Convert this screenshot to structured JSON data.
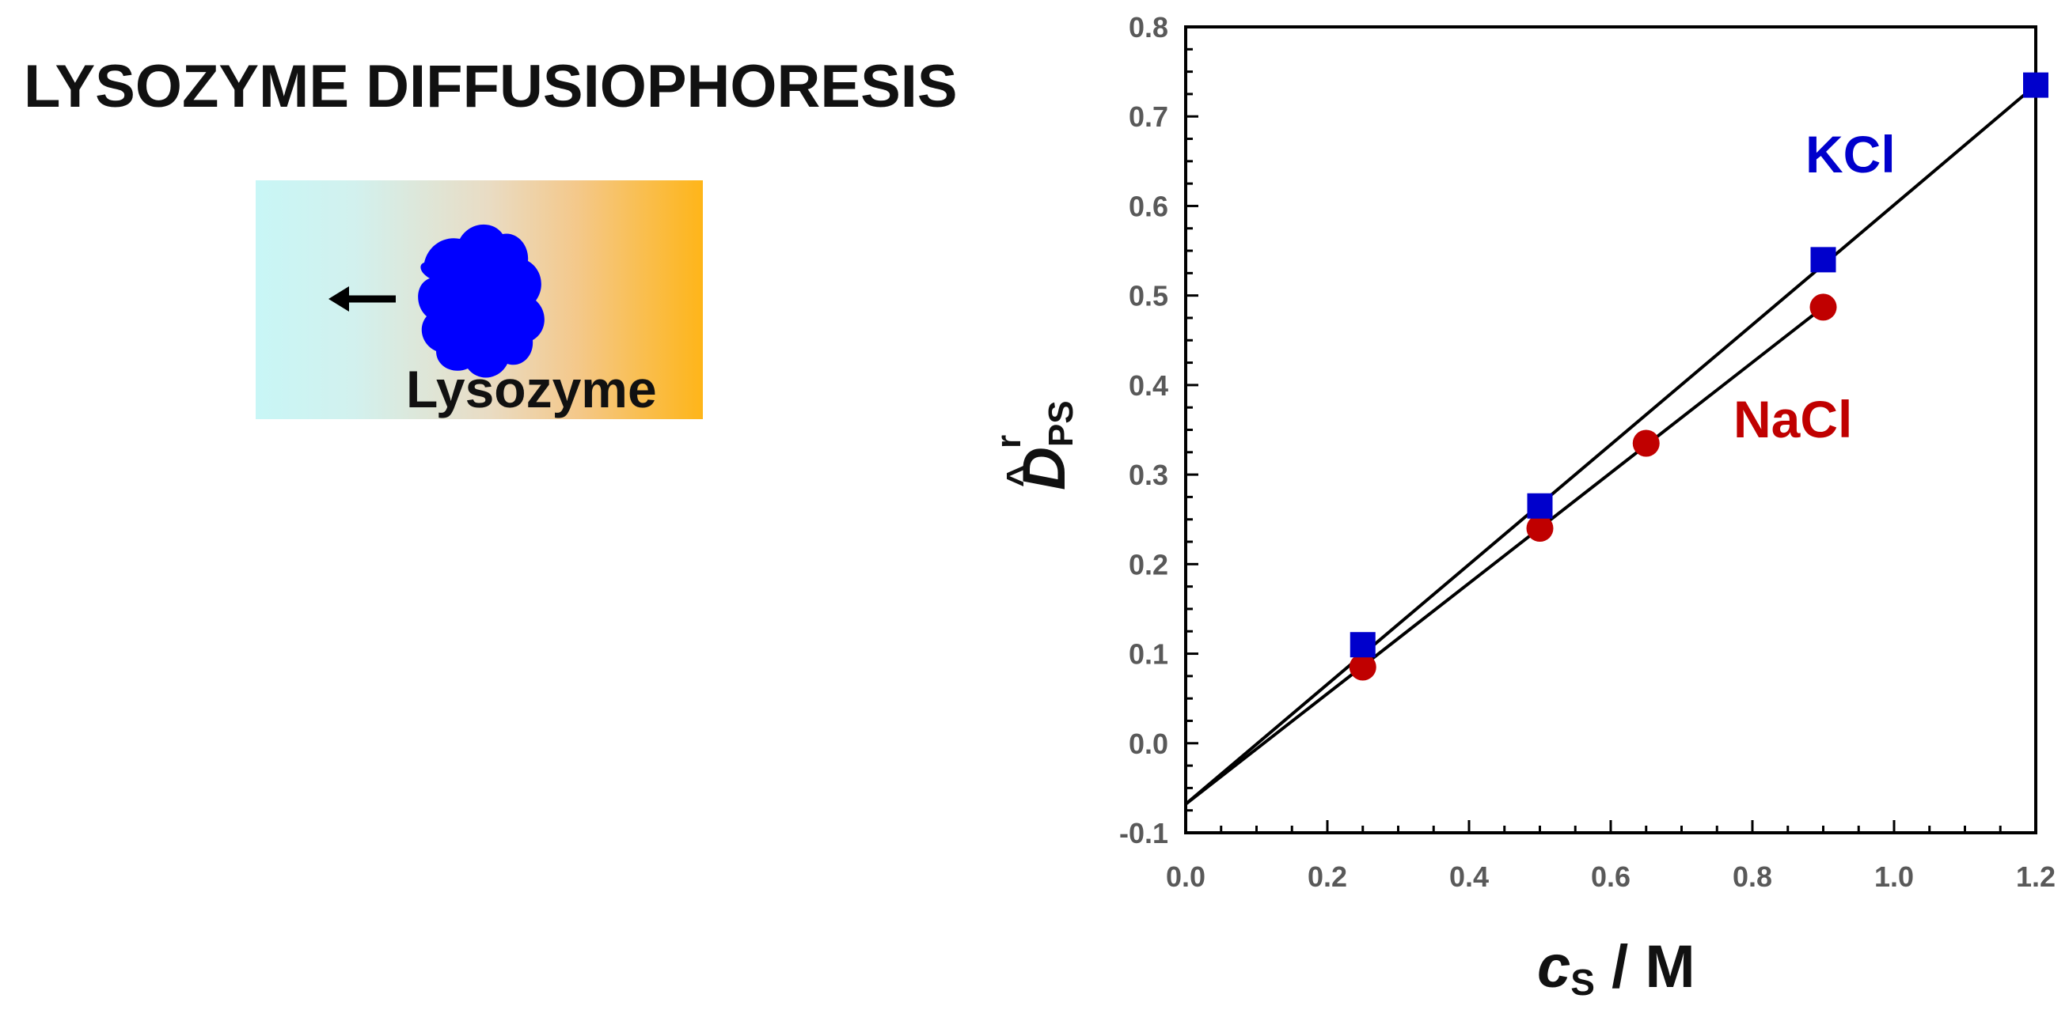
{
  "title": "LYSOZYME DIFFUSIOPHORESIS",
  "illustration": {
    "label": "Lysozyme",
    "icon": "lysozyme-blob-icon",
    "arrow_icon": "arrow-left-icon",
    "blob_color": "#0000ff",
    "gradient_colors": [
      "#c8f6f6",
      "#feb519"
    ]
  },
  "chart_data": {
    "type": "scatter",
    "xlabel_main": "c",
    "xlabel_sub": "S",
    "xlabel_unit": " / M",
    "ylabel_main": "D",
    "ylabel_sub": "PS",
    "ylabel_sup": "r",
    "xlim": [
      0.0,
      1.2
    ],
    "ylim": [
      -0.1,
      0.8
    ],
    "xticks": [
      "0.0",
      "0.2",
      "0.4",
      "0.6",
      "0.8",
      "1.0",
      "1.2"
    ],
    "yticks": [
      "-0.1",
      "0.0",
      "0.1",
      "0.2",
      "0.3",
      "0.4",
      "0.5",
      "0.6",
      "0.7",
      "0.8"
    ],
    "series": [
      {
        "name": "KCl",
        "color": "#0000cc",
        "marker": "square",
        "x": [
          0.25,
          0.5,
          0.9,
          1.2
        ],
        "y": [
          0.11,
          0.265,
          0.54,
          0.735
        ],
        "fit": {
          "x0": 0.0,
          "y0": -0.068,
          "x1": 1.2,
          "y1": 0.735
        }
      },
      {
        "name": "NaCl",
        "color": "#c00000",
        "marker": "circle",
        "x": [
          0.25,
          0.5,
          0.65,
          0.9
        ],
        "y": [
          0.085,
          0.24,
          0.335,
          0.487
        ],
        "fit": {
          "x0": 0.0,
          "y0": -0.068,
          "x1": 0.9,
          "y1": 0.487
        }
      }
    ]
  }
}
